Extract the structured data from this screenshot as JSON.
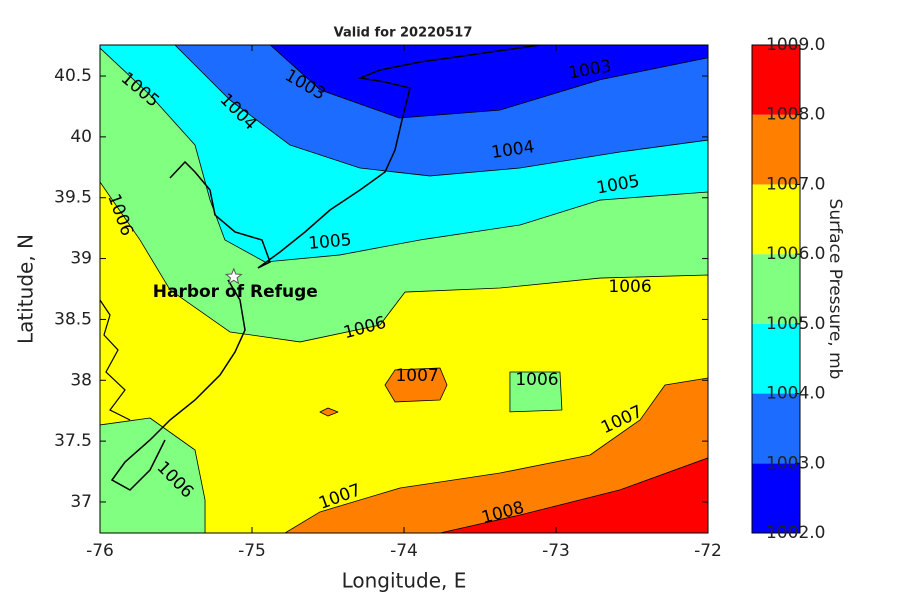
{
  "chart_data": {
    "type": "contour",
    "title": "Valid for 20220517",
    "xlabel": "Longitude, E",
    "ylabel": "Latitude, N",
    "xlim": [
      -76,
      -72
    ],
    "ylim": [
      36.745,
      40.755
    ],
    "xticks": [
      -76,
      -75,
      -74,
      -73,
      -72
    ],
    "yticks": [
      37,
      37.5,
      38,
      38.5,
      39,
      39.5,
      40,
      40.5
    ],
    "colorbar": {
      "label": "Surface Pressure, mb",
      "ticks": [
        {
          "value": 1002,
          "label": "1002.0"
        },
        {
          "value": 1003,
          "label": "1003.0"
        },
        {
          "value": 1004,
          "label": "1004.0"
        },
        {
          "value": 1005,
          "label": "1005.0"
        },
        {
          "value": 1006,
          "label": "1006.0"
        },
        {
          "value": 1007,
          "label": "1007.0"
        },
        {
          "value": 1008,
          "label": "1008.0"
        },
        {
          "value": 1009,
          "label": "1009.0"
        }
      ],
      "colors": [
        "#0000ff",
        "#1c6cff",
        "#00ffff",
        "#80ff80",
        "#ffff00",
        "#ff8000",
        "#ff0000"
      ]
    },
    "regions": [
      {
        "level": 1002,
        "lon": [
          -76,
          -72,
          -72,
          -76
        ],
        "lat": [
          40.755,
          40.755,
          36.745,
          36.745
        ]
      },
      {
        "level": 1003,
        "lon": [
          -76,
          -74.88,
          -74.55,
          -74.03,
          -73.37,
          -72.71,
          -72,
          -72,
          -76
        ],
        "lat": [
          40.755,
          40.755,
          40.385,
          40.155,
          40.22,
          40.47,
          40.65,
          36.745,
          36.745
        ]
      },
      {
        "level": 1004,
        "lon": [
          -75.507,
          -75.145,
          -74.75,
          -74.29,
          -73.83,
          -73.237,
          -72.58,
          -72,
          -72,
          -76,
          -76
        ],
        "lat": [
          40.755,
          40.303,
          39.933,
          39.744,
          39.679,
          39.744,
          39.876,
          39.974,
          36.745,
          36.745,
          40.755
        ]
      },
      {
        "level": 1005,
        "lon": [
          -76,
          -75.671,
          -75.375,
          -75.276,
          -75.178,
          -74.914,
          -74.421,
          -73.895,
          -73.237,
          -72.71,
          -72,
          -72,
          -76
        ],
        "lat": [
          40.73,
          40.344,
          39.933,
          39.481,
          39.153,
          38.972,
          39.03,
          39.153,
          39.276,
          39.481,
          39.547,
          36.745,
          36.745
        ]
      },
      {
        "level": 1006,
        "lon": [
          -76,
          -75.737,
          -75.539,
          -75.145,
          -74.684,
          -74.158,
          -73.993,
          -73.368,
          -72.71,
          -72,
          -72,
          -75.309,
          -75.309,
          -75.375,
          -75.671,
          -76
        ],
        "lat": [
          39.629,
          39.153,
          38.742,
          38.397,
          38.315,
          38.454,
          38.725,
          38.758,
          38.84,
          38.865,
          36.745,
          36.745,
          37.016,
          37.427,
          37.69,
          37.633
        ]
      },
      {
        "level": 1005,
        "lon": [
          -73.303,
          -72.974,
          -72.961,
          -73.303
        ],
        "lat": [
          38.068,
          38.068,
          37.756,
          37.74
        ]
      },
      {
        "level": 1007,
        "lon": [
          -74.125,
          -74.059,
          -73.763,
          -73.717,
          -73.763,
          -74.059
        ],
        "lat": [
          37.961,
          38.085,
          38.101,
          37.961,
          37.838,
          37.822
        ]
      },
      {
        "level": 1007,
        "lon": [
          -74.553,
          -74.5,
          -74.434,
          -74.5
        ],
        "lat": [
          37.739,
          37.772,
          37.739,
          37.706
        ]
      },
      {
        "level": 1007,
        "lon": [
          -74.783,
          -74.553,
          -74.026,
          -73.368,
          -72.776,
          -72.447,
          -72.283,
          -72,
          -72
        ],
        "lat": [
          36.745,
          36.918,
          37.115,
          37.238,
          37.386,
          37.674,
          37.961,
          38.019,
          36.745
        ]
      },
      {
        "level": 1008,
        "lon": [
          -73.763,
          -73.237,
          -72.579,
          -72,
          -72
        ],
        "lat": [
          36.745,
          36.893,
          37.099,
          37.362,
          36.745
        ]
      }
    ],
    "contour_labels": [
      {
        "value": 1003,
        "lon": -74.651,
        "lat": 40.426
      },
      {
        "value": 1003,
        "lon": -72.776,
        "lat": 40.55
      },
      {
        "value": 1005,
        "lon": -75.737,
        "lat": 40.385
      },
      {
        "value": 1004,
        "lon": -75.092,
        "lat": 40.204
      },
      {
        "value": 1004,
        "lon": -73.283,
        "lat": 39.892
      },
      {
        "value": 1005,
        "lon": -72.592,
        "lat": 39.605
      },
      {
        "value": 1006,
        "lon": -75.868,
        "lat": 39.358
      },
      {
        "value": 1005,
        "lon": -74.487,
        "lat": 39.136
      },
      {
        "value": 1006,
        "lon": -72.513,
        "lat": 38.767
      },
      {
        "value": 1006,
        "lon": -74.257,
        "lat": 38.43
      },
      {
        "value": 1007,
        "lon": -73.914,
        "lat": 38.035
      },
      {
        "value": 1006,
        "lon": -73.125,
        "lat": 38.002
      },
      {
        "value": 1007,
        "lon": -72.566,
        "lat": 37.674
      },
      {
        "value": 1006,
        "lon": -75.507,
        "lat": 37.181
      },
      {
        "value": 1007,
        "lon": -74.421,
        "lat": 37.041
      },
      {
        "value": 1008,
        "lon": -73.349,
        "lat": 36.91
      }
    ],
    "annotations": [
      {
        "text": "Harbor of Refuge",
        "lon": -75.12,
        "lat": 38.85
      }
    ]
  }
}
